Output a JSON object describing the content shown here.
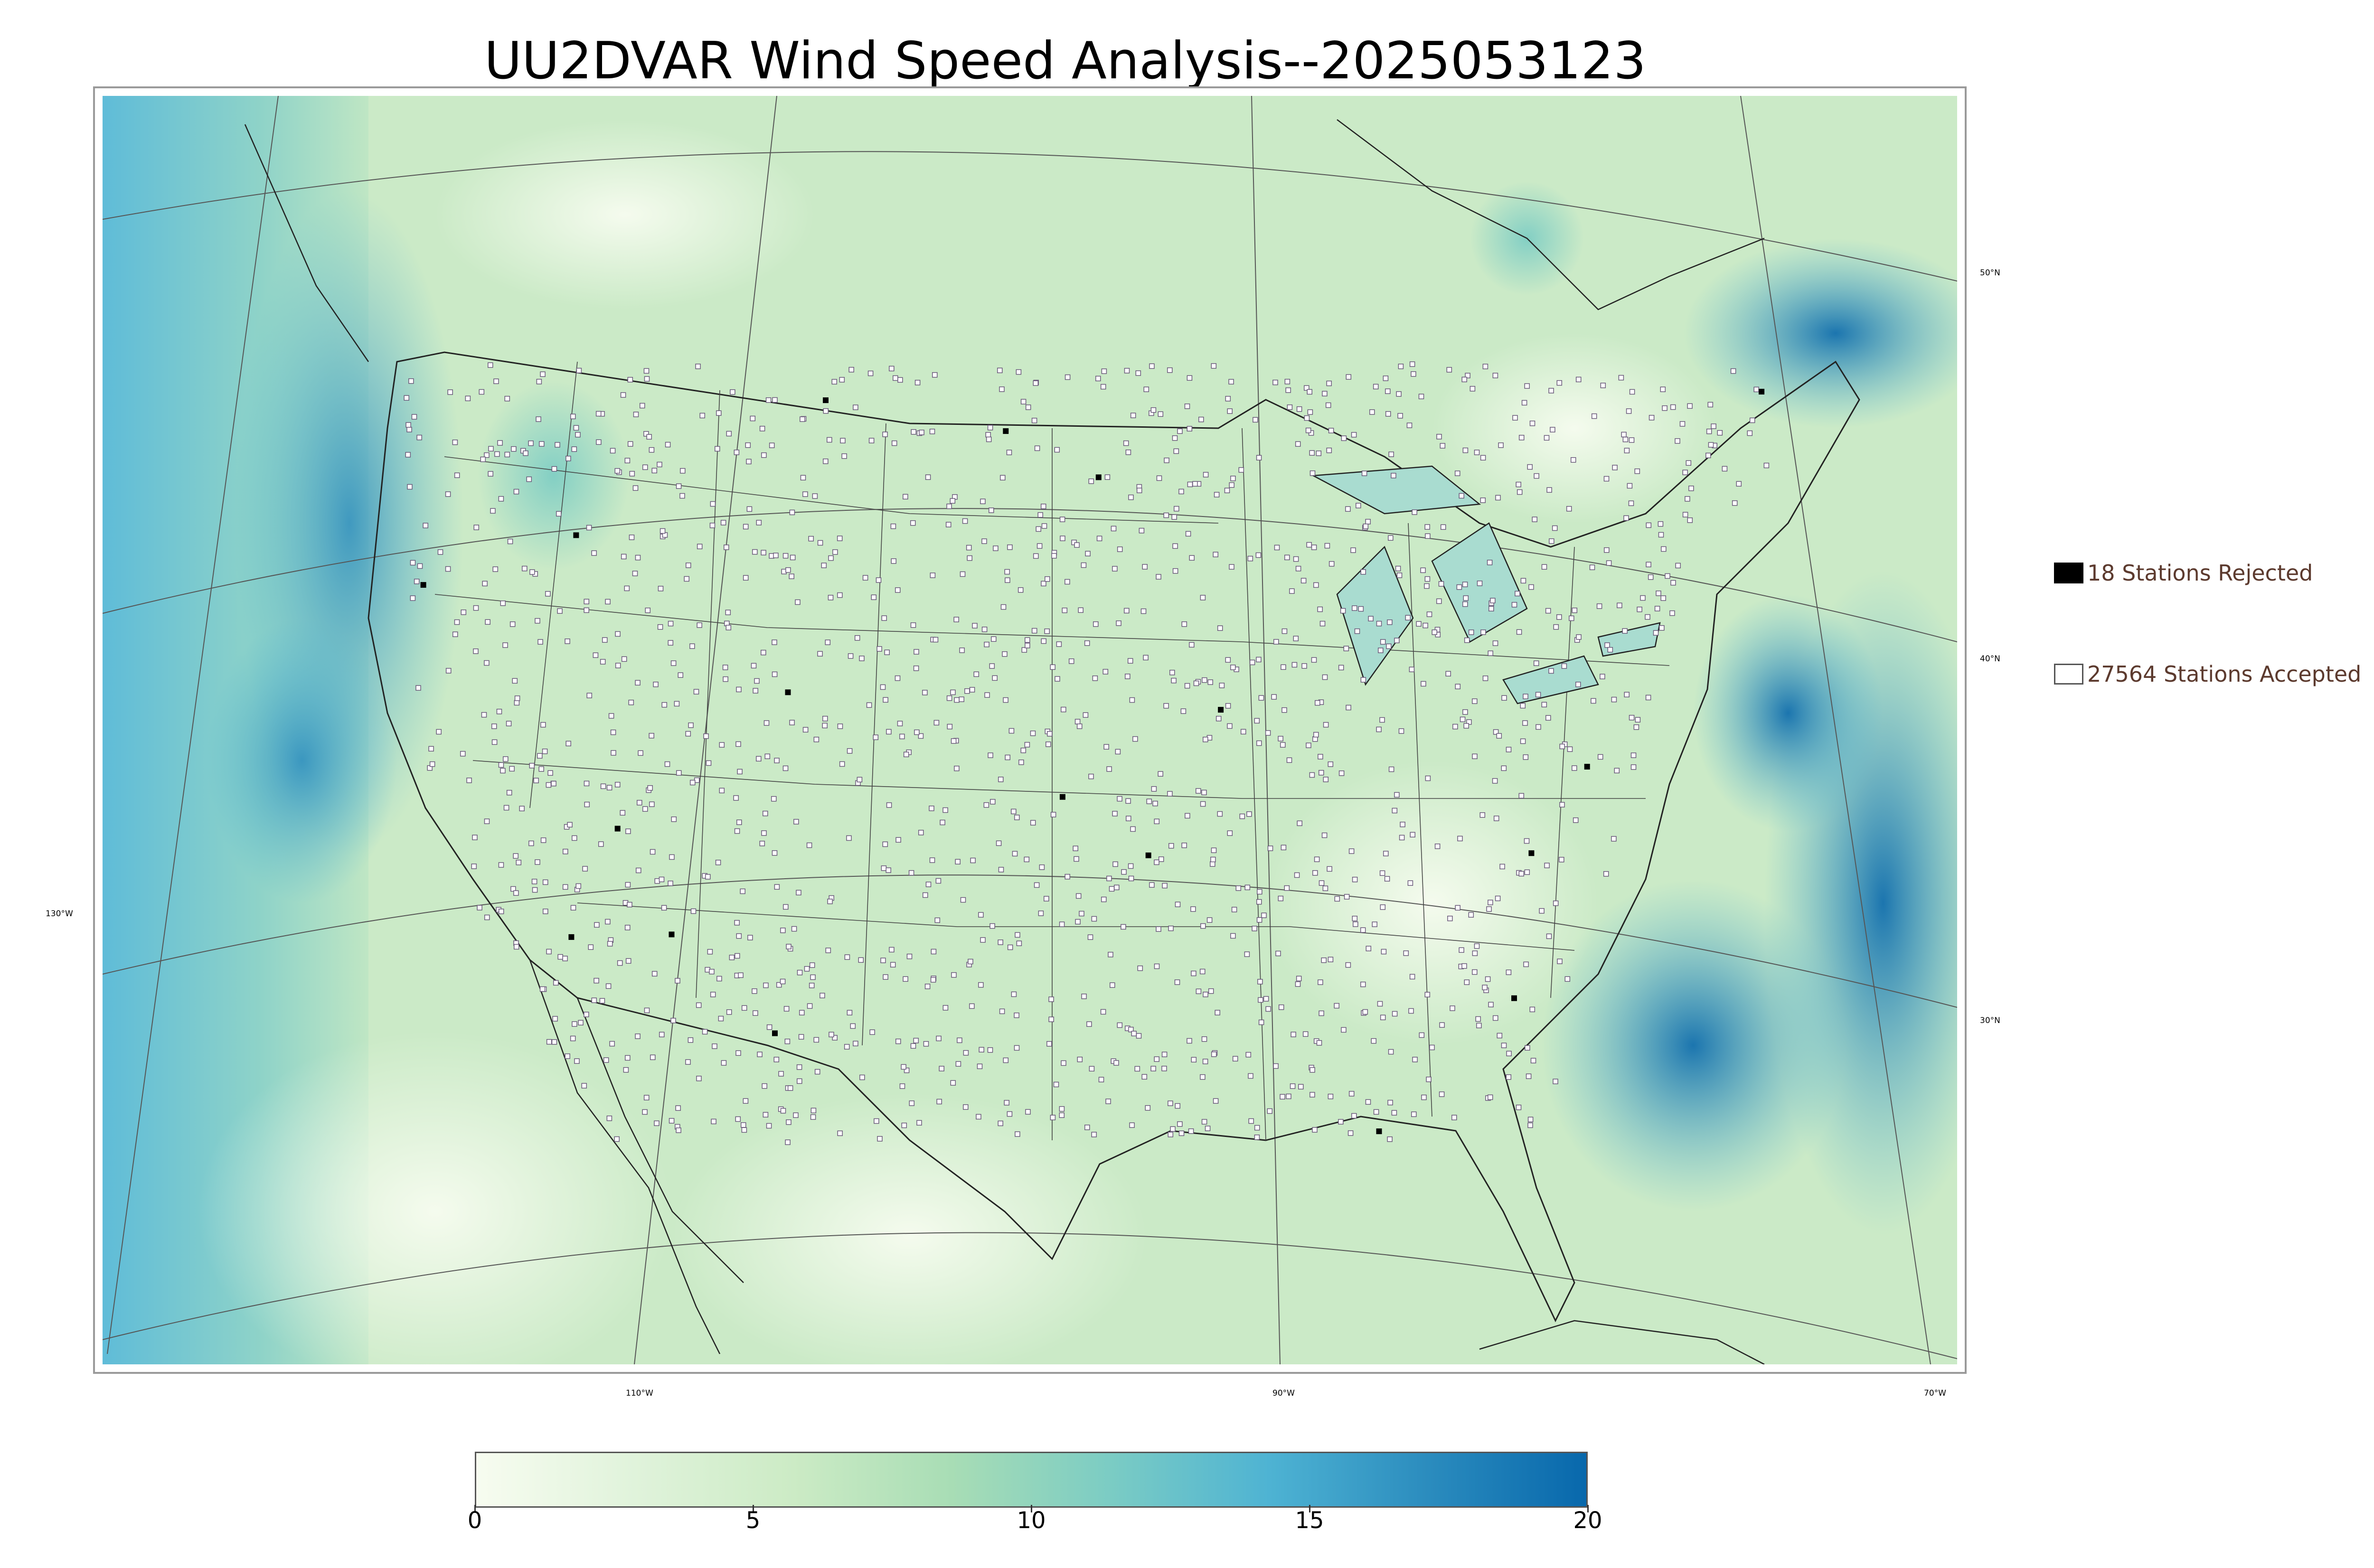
{
  "title": "UU2DVAR Wind Speed Analysis--2025053123",
  "map": {
    "lat_labels": [
      "50°N",
      "40°N",
      "30°N"
    ],
    "lon_labels": [
      "130°W",
      "110°W",
      "90°W",
      "70°W"
    ],
    "ocean_color": "#3a9fcf",
    "land_color": "#c9ebc8",
    "station_marker_color": "#6a5a7a"
  },
  "legend": {
    "rejected_label": "18 Stations Rejected",
    "accepted_label": "27564 Stations Accepted"
  },
  "colorbar": {
    "min": 0,
    "max": 20,
    "ticks": [
      "0",
      "5",
      "10",
      "15",
      "20"
    ],
    "colors": [
      "#f7fcf0",
      "#e0f3db",
      "#ccebc5",
      "#a8ddb5",
      "#7bccc4",
      "#4eb3d3",
      "#2b8cbe",
      "#0868ac"
    ]
  }
}
